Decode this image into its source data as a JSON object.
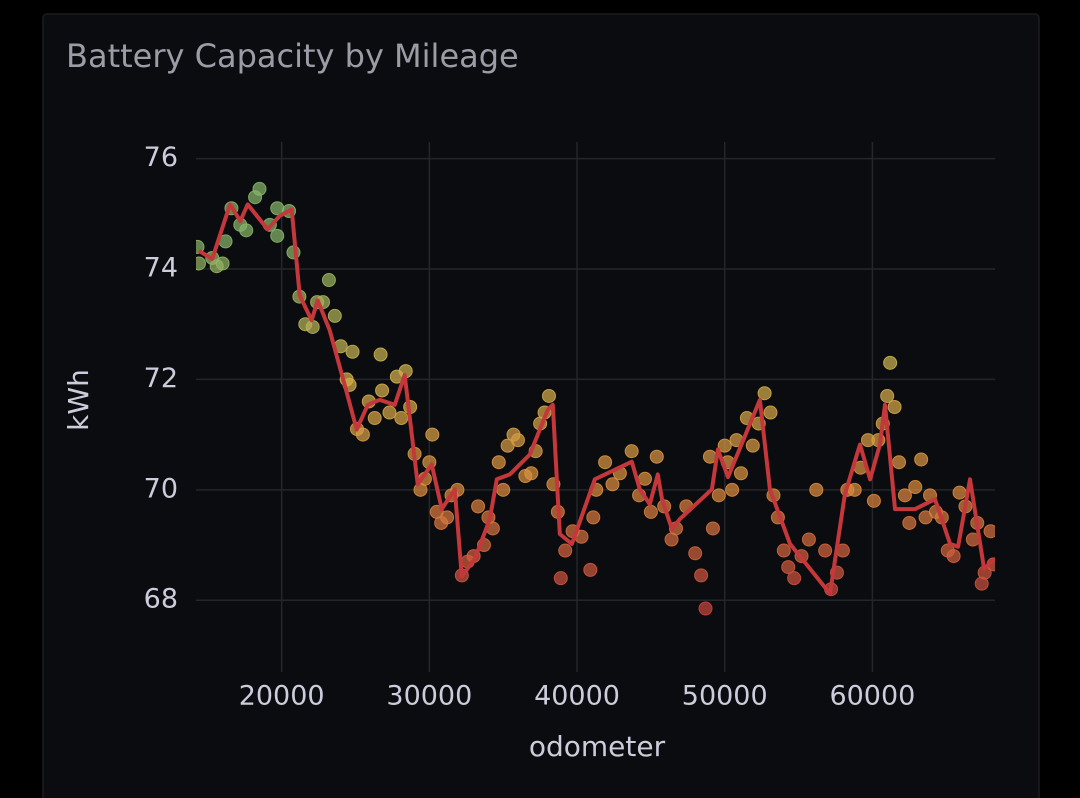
{
  "chart_data": {
    "type": "scatter",
    "title": "Battery Capacity by Mileage",
    "xlabel": "odometer",
    "ylabel": "kWh",
    "xlim": [
      14200,
      68300
    ],
    "ylim": [
      66.7,
      76.3
    ],
    "xticks": [
      20000,
      30000,
      40000,
      50000,
      60000
    ],
    "yticks": [
      68,
      70,
      72,
      74,
      76
    ],
    "grid": true,
    "color_scale": [
      {
        "value": 68,
        "color": "#c8443e"
      },
      {
        "value": 70,
        "color": "#d98b3e"
      },
      {
        "value": 72,
        "color": "#d2b04c"
      },
      {
        "value": 74.5,
        "color": "#86b468"
      }
    ],
    "series": [
      {
        "mode": "markers",
        "x": [
          14300,
          14400,
          15300,
          15600,
          16000,
          16200,
          16600,
          17200,
          17600,
          18200,
          18500,
          19200,
          19700,
          19700,
          20500,
          20800,
          21200,
          21600,
          22100,
          22400,
          22800,
          23200,
          23600,
          24000,
          24400,
          24600,
          24800,
          25100,
          25500,
          25900,
          26300,
          26700,
          26800,
          27300,
          27800,
          28100,
          28400,
          28700,
          29000,
          29400,
          29700,
          30000,
          30200,
          30500,
          30800,
          31200,
          31500,
          31900,
          32200,
          32600,
          33000,
          33300,
          33700,
          34000,
          34300,
          34700,
          35000,
          35300,
          35700,
          36000,
          36500,
          36900,
          37200,
          37500,
          37800,
          38100,
          38400,
          38700,
          38900,
          39200,
          39700,
          40300,
          40900,
          41100,
          41300,
          41900,
          42400,
          42900,
          43700,
          44200,
          44600,
          45000,
          45400,
          45900,
          46400,
          46700,
          47400,
          48000,
          48400,
          48700,
          49000,
          49200,
          49600,
          50000,
          50200,
          50500,
          50800,
          51100,
          51500,
          51900,
          52300,
          52700,
          53100,
          53300,
          53600,
          54000,
          54300,
          54700,
          55200,
          55700,
          56200,
          56800,
          57200,
          57600,
          58000,
          58300,
          58800,
          59200,
          59700,
          60100,
          60400,
          60700,
          61000,
          61200,
          61500,
          61800,
          62200,
          62500,
          62900,
          63300,
          63600,
          63900,
          64300,
          64700,
          65100,
          65500,
          65900,
          66300,
          66800,
          67100,
          67400,
          67600,
          68000,
          68200
        ],
        "y": [
          74.4,
          74.1,
          74.2,
          74.05,
          74.1,
          74.5,
          75.1,
          74.8,
          74.7,
          75.3,
          75.45,
          74.8,
          75.1,
          74.6,
          75.05,
          74.3,
          73.5,
          73.0,
          72.95,
          73.4,
          73.4,
          73.8,
          73.15,
          72.6,
          72.0,
          71.9,
          72.5,
          71.1,
          71.0,
          71.6,
          71.3,
          72.45,
          71.8,
          71.4,
          72.05,
          71.3,
          72.15,
          71.5,
          70.65,
          70.0,
          70.2,
          70.5,
          71.0,
          69.6,
          69.4,
          69.5,
          69.9,
          70.0,
          68.45,
          68.7,
          68.8,
          69.7,
          69.0,
          69.5,
          69.3,
          70.5,
          70.0,
          70.8,
          71.0,
          70.9,
          70.25,
          70.3,
          70.7,
          71.2,
          71.4,
          71.7,
          70.1,
          69.6,
          68.4,
          68.9,
          69.25,
          69.15,
          68.55,
          69.5,
          70.0,
          70.5,
          70.1,
          70.3,
          70.7,
          69.9,
          70.2,
          69.6,
          70.6,
          69.7,
          69.1,
          69.3,
          69.7,
          68.85,
          68.45,
          67.85,
          70.6,
          69.3,
          69.9,
          70.8,
          70.5,
          70.0,
          70.9,
          70.3,
          71.3,
          70.8,
          71.2,
          71.75,
          71.4,
          69.9,
          69.5,
          68.9,
          68.6,
          68.4,
          68.8,
          69.1,
          70.0,
          68.9,
          68.2,
          68.5,
          68.9,
          70.0,
          70.0,
          70.4,
          70.9,
          69.8,
          70.9,
          71.2,
          71.7,
          72.3,
          71.5,
          70.5,
          69.9,
          69.4,
          70.05,
          70.55,
          69.5,
          69.9,
          69.6,
          69.5,
          68.9,
          68.8,
          69.95,
          69.7,
          69.1,
          69.4,
          68.3,
          68.5,
          69.25,
          68.65
        ]
      },
      {
        "mode": "lines",
        "color": "#c4373a",
        "x": [
          14400,
          15300,
          16500,
          17200,
          17700,
          19050,
          19860,
          20680,
          21220,
          22030,
          22440,
          23250,
          24270,
          25080,
          25830,
          26640,
          27660,
          28330,
          29210,
          30160,
          30840,
          31720,
          32200,
          33080,
          34090,
          34570,
          35450,
          36800,
          38020,
          38360,
          38830,
          39650,
          41200,
          43710,
          44250,
          44930,
          45470,
          45750,
          46420,
          46960,
          49130,
          49540,
          50220,
          52380,
          53060,
          54420,
          57130,
          58140,
          59160,
          59840,
          60510,
          60850,
          61530,
          62890,
          64240,
          65260,
          65800,
          66610,
          67560,
          68300
        ],
        "y": [
          74.33,
          74.18,
          75.17,
          74.87,
          75.17,
          74.72,
          74.96,
          75.08,
          73.52,
          73.07,
          73.43,
          72.89,
          71.9,
          71.09,
          71.54,
          71.63,
          71.54,
          72.08,
          70.1,
          70.46,
          69.65,
          70.01,
          68.43,
          68.75,
          69.47,
          70.19,
          70.28,
          70.64,
          71.45,
          71.54,
          69.2,
          69.02,
          70.19,
          70.51,
          70.01,
          69.74,
          70.28,
          69.83,
          69.29,
          69.47,
          70.01,
          70.73,
          70.23,
          71.63,
          70.01,
          69.02,
          68.12,
          69.92,
          70.82,
          70.19,
          70.82,
          71.54,
          69.65,
          69.65,
          69.83,
          69.02,
          68.97,
          70.19,
          68.57,
          68.75
        ]
      }
    ]
  }
}
